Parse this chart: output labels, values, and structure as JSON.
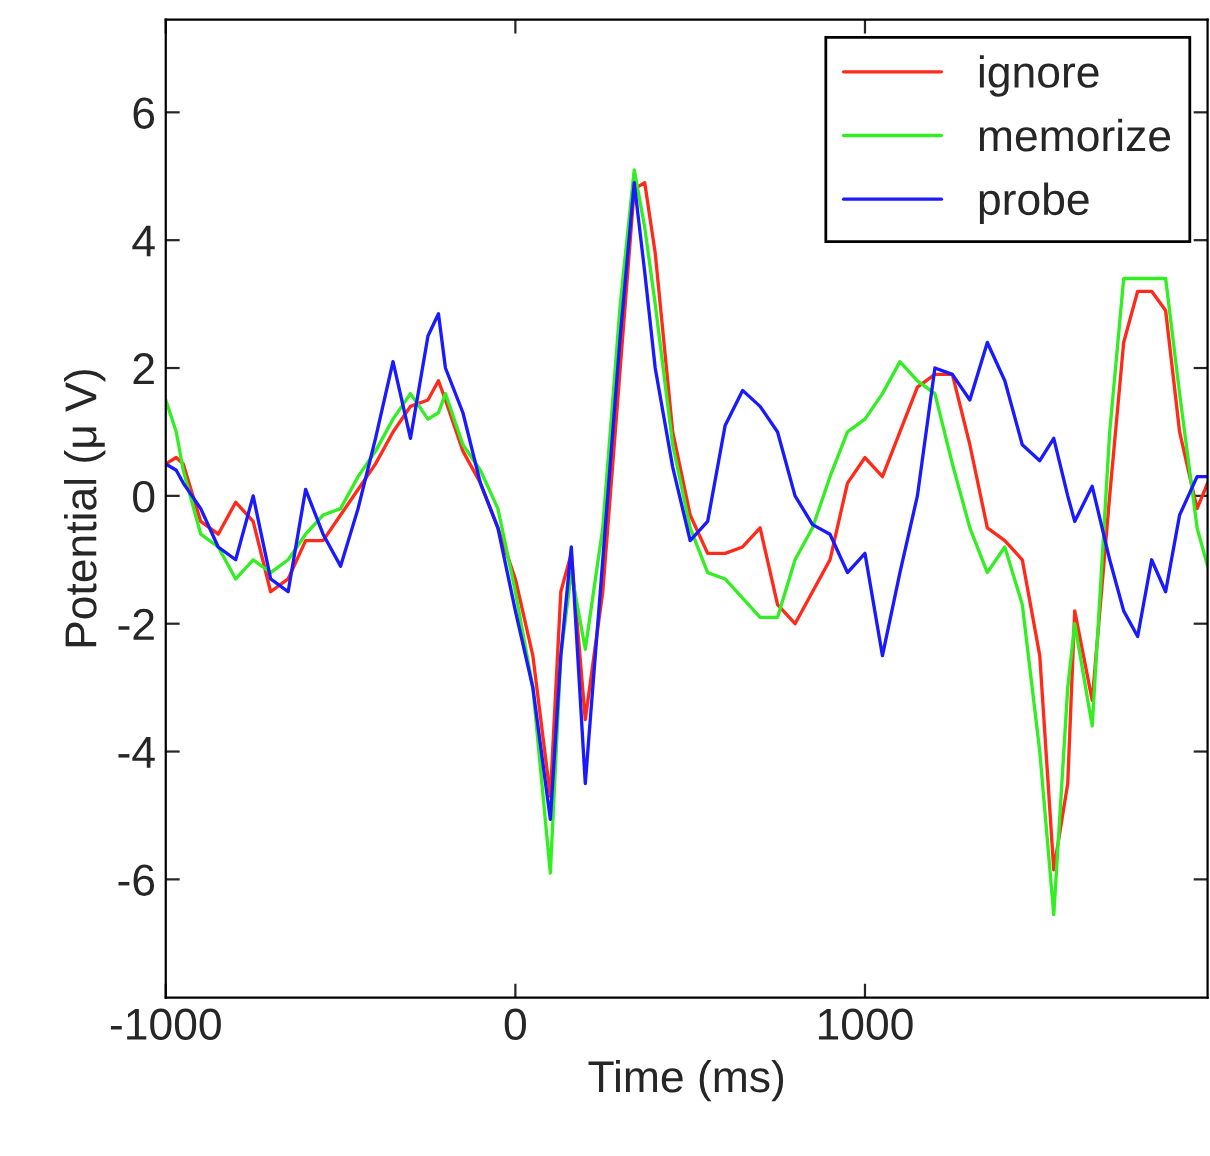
{
  "chart_data": {
    "type": "line",
    "xlabel": "Time (ms)",
    "ylabel": "Potential (μ V)",
    "xlim": [
      -1000,
      1980
    ],
    "ylim": [
      -7.85,
      7.45
    ],
    "xticks": [
      -1000,
      0,
      1000
    ],
    "yticks": [
      -6,
      -4,
      -2,
      0,
      2,
      4,
      6
    ],
    "grid": false,
    "legend": "top right",
    "x": [
      -1000,
      -970,
      -950,
      -900,
      -850,
      -800,
      -750,
      -700,
      -650,
      -600,
      -550,
      -500,
      -450,
      -400,
      -350,
      -300,
      -250,
      -220,
      -200,
      -150,
      -100,
      -50,
      0,
      50,
      100,
      130,
      160,
      200,
      250,
      300,
      340,
      370,
      400,
      450,
      500,
      550,
      600,
      650,
      700,
      750,
      800,
      850,
      900,
      950,
      1000,
      1050,
      1100,
      1150,
      1200,
      1250,
      1300,
      1350,
      1400,
      1450,
      1500,
      1540,
      1580,
      1600,
      1650,
      1700,
      1740,
      1780,
      1820,
      1860,
      1900,
      1950,
      1980
    ],
    "series": [
      {
        "name": "ignore",
        "color": "#ff2a1a",
        "values": [
          0.5,
          0.6,
          0.5,
          -0.4,
          -0.6,
          -0.1,
          -0.4,
          -1.5,
          -1.3,
          -0.7,
          -0.7,
          -0.3,
          0.1,
          0.5,
          1.0,
          1.4,
          1.5,
          1.8,
          1.5,
          0.7,
          0.2,
          -0.5,
          -1.3,
          -2.5,
          -4.7,
          -1.5,
          -0.9,
          -3.5,
          -1.5,
          2.0,
          4.8,
          4.9,
          3.8,
          1.0,
          -0.3,
          -0.9,
          -0.9,
          -0.8,
          -0.5,
          -1.7,
          -2.0,
          -1.5,
          -1.0,
          0.2,
          0.6,
          0.3,
          1.0,
          1.7,
          1.9,
          1.9,
          0.8,
          -0.5,
          -0.7,
          -1.0,
          -2.5,
          -5.85,
          -4.5,
          -1.8,
          -3.2,
          0.0,
          2.4,
          3.2,
          3.2,
          2.9,
          1.0,
          -0.2,
          0.2
        ]
      },
      {
        "name": "memorize",
        "color": "#33ee22",
        "values": [
          1.5,
          1.0,
          0.4,
          -0.6,
          -0.8,
          -1.3,
          -1.0,
          -1.2,
          -1.0,
          -0.6,
          -0.3,
          -0.2,
          0.3,
          0.7,
          1.2,
          1.6,
          1.2,
          1.3,
          1.6,
          0.8,
          0.4,
          -0.2,
          -1.5,
          -3.0,
          -5.9,
          -2.5,
          -1.2,
          -2.4,
          -0.5,
          3.0,
          5.1,
          4.2,
          3.0,
          0.8,
          -0.5,
          -1.2,
          -1.3,
          -1.6,
          -1.9,
          -1.9,
          -1.0,
          -0.5,
          0.3,
          1.0,
          1.2,
          1.6,
          2.1,
          1.8,
          1.6,
          0.5,
          -0.5,
          -1.2,
          -0.8,
          -1.7,
          -4.0,
          -6.55,
          -3.0,
          -2.0,
          -3.6,
          1.0,
          3.4,
          3.4,
          3.4,
          3.4,
          1.6,
          -0.5,
          -1.1
        ]
      },
      {
        "name": "probe",
        "color": "#1a1aff",
        "values": [
          0.5,
          0.4,
          0.2,
          -0.2,
          -0.8,
          -1.0,
          0.0,
          -1.3,
          -1.5,
          0.1,
          -0.6,
          -1.1,
          -0.2,
          0.9,
          2.1,
          0.9,
          2.5,
          2.85,
          2.0,
          1.3,
          0.2,
          -0.5,
          -1.8,
          -3.0,
          -5.06,
          -2.5,
          -0.8,
          -4.5,
          -1.0,
          2.5,
          4.9,
          3.5,
          2.0,
          0.45,
          -0.7,
          -0.4,
          1.1,
          1.65,
          1.4,
          1.0,
          0.0,
          -0.45,
          -0.6,
          -1.2,
          -0.9,
          -2.5,
          -1.2,
          0.0,
          2.0,
          1.9,
          1.5,
          2.4,
          1.8,
          0.8,
          0.55,
          0.9,
          0.0,
          -0.4,
          0.15,
          -1.0,
          -1.8,
          -2.2,
          -1.0,
          -1.5,
          -0.3,
          0.3,
          0.3
        ]
      }
    ]
  }
}
